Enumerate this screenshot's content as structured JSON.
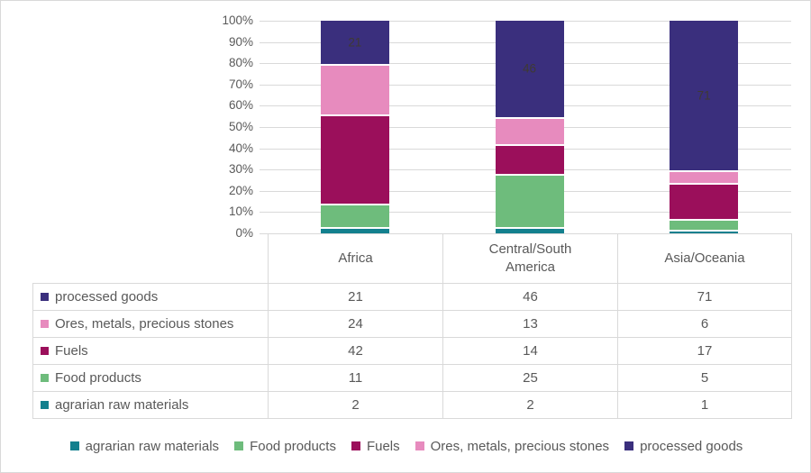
{
  "figure": {
    "background": "#FFFFFF",
    "border_color": "#D9D9D9",
    "text_color": "#595959",
    "gridline_color": "#D9D9D9"
  },
  "chart_data": {
    "type": "bar",
    "subtype": "stacked-100-percent-column-with-data-table",
    "title": "",
    "xlabel": "",
    "ylabel": "",
    "categories": [
      "Africa",
      "Central/South America",
      "Asia/Oceania"
    ],
    "series": [
      {
        "name": "agrarian raw materials",
        "color": "#13808E",
        "values": [
          2,
          2,
          1
        ]
      },
      {
        "name": "Food products",
        "color": "#6EBC7C",
        "values": [
          11,
          25,
          5
        ]
      },
      {
        "name": "Fuels",
        "color": "#9B0F5B",
        "values": [
          42,
          14,
          17
        ]
      },
      {
        "name": "Ores, metals, precious stones",
        "color": "#E78BBE",
        "values": [
          24,
          13,
          6
        ]
      },
      {
        "name": "processed goods",
        "color": "#3A2F7D",
        "values": [
          21,
          46,
          71
        ]
      }
    ],
    "data_labels": {
      "only_on_series": "processed goods",
      "values": [
        21,
        46,
        71
      ],
      "color": "#3F3A33"
    },
    "y_axis": {
      "min": 0,
      "max": 100,
      "tick_step": 10,
      "tick_labels": [
        "100%",
        "90%",
        "80%",
        "70%",
        "60%",
        "50%",
        "40%",
        "30%",
        "20%",
        "10%",
        "0%"
      ],
      "grid": true
    },
    "legend": {
      "position": "bottom",
      "items": [
        "agrarian raw materials",
        "Food products",
        "Fuels",
        "Ores, metals, precious stones",
        "processed goods"
      ]
    },
    "data_table": {
      "columns": [
        "Africa",
        "Central/South America",
        "Asia/Oceania"
      ],
      "rows": [
        {
          "label": "processed goods",
          "values": [
            21,
            46,
            71
          ]
        },
        {
          "label": "Ores, metals, precious stones",
          "values": [
            24,
            13,
            6
          ]
        },
        {
          "label": "Fuels",
          "values": [
            42,
            14,
            17
          ]
        },
        {
          "label": "Food products",
          "values": [
            11,
            25,
            5
          ]
        },
        {
          "label": "agrarian raw materials",
          "values": [
            2,
            2,
            1
          ]
        }
      ]
    }
  }
}
